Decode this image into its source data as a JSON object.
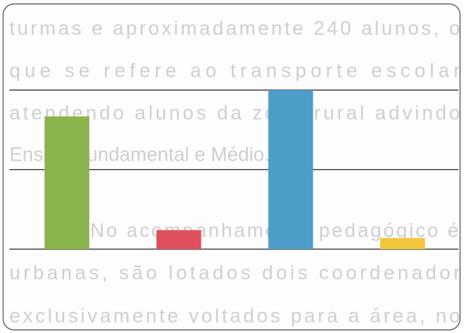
{
  "background_text": [
    "turmas e aproximadamente 240 alunos, o",
    "que se refere ao transporte escolar",
    "atendendo alunos da zona rural advindo",
    "Ensino Fundamental e Médio.",
    "No acompanhamento pedagógico é",
    "urbanas, são lotados dois coordenador",
    "exclusivamente voltados para a área, no"
  ],
  "chart_data": {
    "type": "bar",
    "categories": [
      null,
      null,
      null,
      null
    ],
    "values": [
      1.67,
      0.24,
      2.0,
      0.14
    ],
    "colors": [
      "#8cb44c",
      "#e0505c",
      "#4d9dc9",
      "#f3c53c"
    ],
    "ylim": [
      0,
      2
    ],
    "yticks": [
      0,
      1,
      2
    ],
    "grid": true
  }
}
